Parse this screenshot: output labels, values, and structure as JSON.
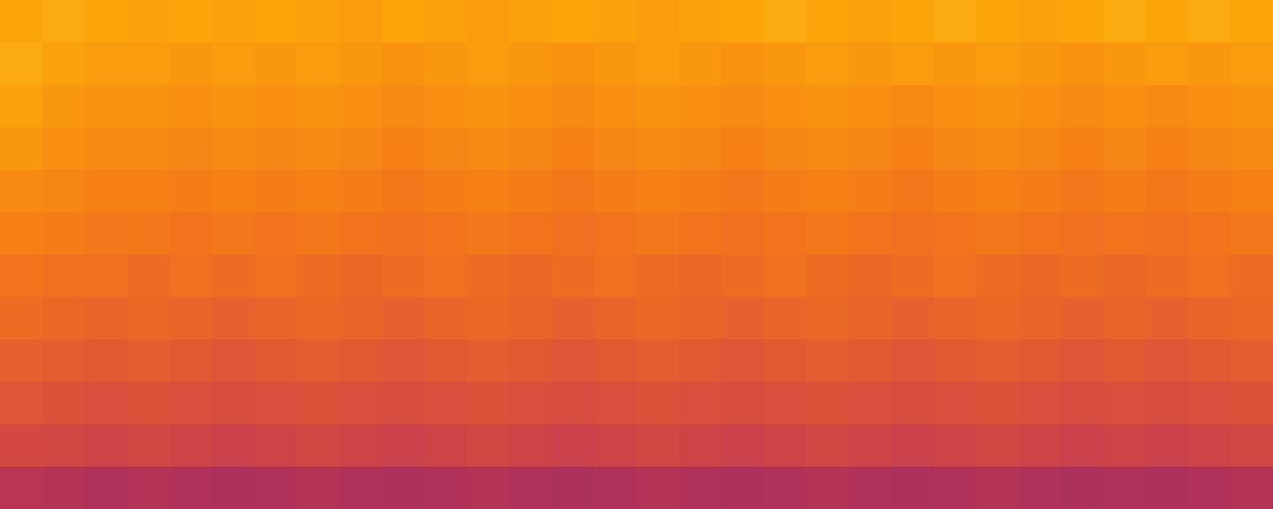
{
  "chart_data": {
    "type": "heatmap",
    "tick_labels": false,
    "grid": false,
    "cells": [
      [
        0.8,
        0.81,
        0.8,
        0.79,
        0.8,
        0.79,
        0.8,
        0.79,
        0.78,
        0.8,
        0.79,
        0.78,
        0.79,
        0.8,
        0.79,
        0.78,
        0.79,
        0.8,
        0.81,
        0.8,
        0.79,
        0.8,
        0.81,
        0.8,
        0.79,
        0.8,
        0.81,
        0.8,
        0.81,
        0.8
      ],
      [
        0.81,
        0.79,
        0.78,
        0.78,
        0.77,
        0.78,
        0.77,
        0.78,
        0.77,
        0.76,
        0.77,
        0.78,
        0.77,
        0.76,
        0.77,
        0.78,
        0.77,
        0.76,
        0.77,
        0.78,
        0.77,
        0.78,
        0.77,
        0.78,
        0.77,
        0.76,
        0.77,
        0.78,
        0.77,
        0.78
      ],
      [
        0.79,
        0.77,
        0.76,
        0.76,
        0.75,
        0.76,
        0.75,
        0.76,
        0.75,
        0.74,
        0.75,
        0.76,
        0.75,
        0.74,
        0.75,
        0.76,
        0.75,
        0.74,
        0.75,
        0.76,
        0.75,
        0.74,
        0.75,
        0.76,
        0.75,
        0.74,
        0.75,
        0.74,
        0.75,
        0.76
      ],
      [
        0.77,
        0.75,
        0.74,
        0.74,
        0.73,
        0.74,
        0.73,
        0.74,
        0.73,
        0.72,
        0.73,
        0.74,
        0.73,
        0.72,
        0.73,
        0.74,
        0.73,
        0.72,
        0.73,
        0.74,
        0.73,
        0.72,
        0.73,
        0.74,
        0.73,
        0.72,
        0.73,
        0.72,
        0.73,
        0.74
      ],
      [
        0.74,
        0.73,
        0.72,
        0.72,
        0.71,
        0.72,
        0.71,
        0.72,
        0.71,
        0.7,
        0.71,
        0.72,
        0.71,
        0.7,
        0.71,
        0.72,
        0.71,
        0.7,
        0.71,
        0.72,
        0.71,
        0.7,
        0.71,
        0.72,
        0.71,
        0.7,
        0.71,
        0.7,
        0.71,
        0.72
      ],
      [
        0.72,
        0.71,
        0.7,
        0.7,
        0.69,
        0.7,
        0.69,
        0.7,
        0.69,
        0.68,
        0.69,
        0.7,
        0.69,
        0.68,
        0.69,
        0.7,
        0.69,
        0.68,
        0.69,
        0.7,
        0.69,
        0.68,
        0.69,
        0.7,
        0.69,
        0.68,
        0.69,
        0.68,
        0.69,
        0.7
      ],
      [
        0.69,
        0.68,
        0.68,
        0.67,
        0.68,
        0.67,
        0.68,
        0.67,
        0.66,
        0.67,
        0.68,
        0.67,
        0.66,
        0.67,
        0.68,
        0.67,
        0.66,
        0.67,
        0.68,
        0.67,
        0.66,
        0.67,
        0.68,
        0.67,
        0.66,
        0.67,
        0.66,
        0.67,
        0.68,
        0.67
      ],
      [
        0.67,
        0.66,
        0.65,
        0.66,
        0.65,
        0.64,
        0.65,
        0.66,
        0.65,
        0.64,
        0.65,
        0.66,
        0.65,
        0.64,
        0.65,
        0.66,
        0.65,
        0.64,
        0.65,
        0.66,
        0.65,
        0.64,
        0.65,
        0.66,
        0.65,
        0.64,
        0.65,
        0.64,
        0.65,
        0.66
      ],
      [
        0.64,
        0.63,
        0.62,
        0.63,
        0.62,
        0.61,
        0.62,
        0.63,
        0.62,
        0.61,
        0.62,
        0.63,
        0.62,
        0.61,
        0.62,
        0.63,
        0.62,
        0.61,
        0.62,
        0.63,
        0.62,
        0.61,
        0.62,
        0.63,
        0.62,
        0.61,
        0.62,
        0.61,
        0.62,
        0.63
      ],
      [
        0.61,
        0.6,
        0.59,
        0.6,
        0.59,
        0.58,
        0.59,
        0.6,
        0.59,
        0.58,
        0.59,
        0.6,
        0.59,
        0.58,
        0.59,
        0.6,
        0.59,
        0.58,
        0.59,
        0.6,
        0.59,
        0.58,
        0.59,
        0.6,
        0.59,
        0.58,
        0.59,
        0.58,
        0.59,
        0.6
      ],
      [
        0.57,
        0.56,
        0.55,
        0.56,
        0.55,
        0.54,
        0.55,
        0.56,
        0.55,
        0.54,
        0.55,
        0.56,
        0.55,
        0.54,
        0.55,
        0.56,
        0.55,
        0.54,
        0.55,
        0.56,
        0.55,
        0.54,
        0.55,
        0.56,
        0.55,
        0.54,
        0.55,
        0.54,
        0.55,
        0.56
      ],
      [
        0.49,
        0.48,
        0.47,
        0.48,
        0.47,
        0.46,
        0.47,
        0.48,
        0.47,
        0.46,
        0.47,
        0.48,
        0.47,
        0.46,
        0.47,
        0.48,
        0.47,
        0.46,
        0.47,
        0.48,
        0.47,
        0.46,
        0.47,
        0.48,
        0.47,
        0.46,
        0.47,
        0.46,
        0.47,
        0.48
      ]
    ]
  }
}
